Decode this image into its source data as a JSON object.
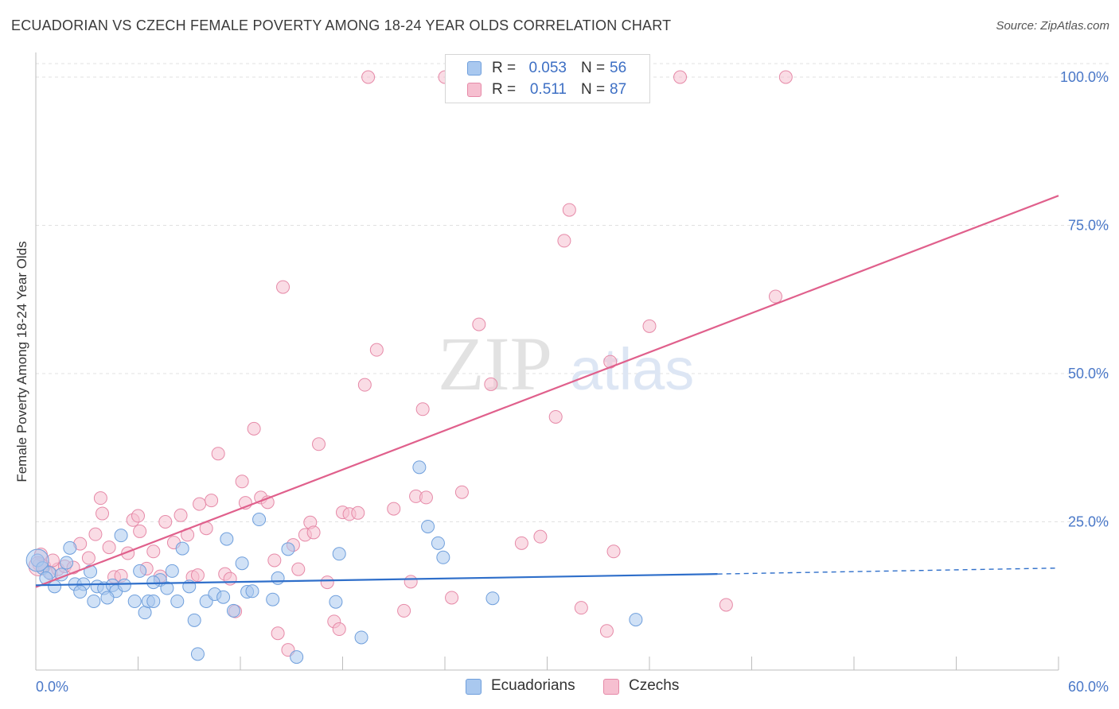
{
  "header": {
    "title": "ECUADORIAN VS CZECH FEMALE POVERTY AMONG 18-24 YEAR OLDS CORRELATION CHART",
    "source": "Source: ZipAtlas.com"
  },
  "watermark": {
    "zip": "ZIP",
    "atlas": "atlas"
  },
  "legend_top": {
    "rows": [
      {
        "r_label": "R =",
        "r_value": "0.053",
        "n_label": "N =",
        "n_value": "56"
      },
      {
        "r_label": "R =",
        "r_value": "0.511",
        "n_label": "N =",
        "n_value": "87"
      }
    ]
  },
  "legend_bottom": {
    "items": [
      {
        "label": "Ecuadorians"
      },
      {
        "label": "Czechs"
      }
    ]
  },
  "colors": {
    "ecuadorian_fill": "#a9c8ef",
    "ecuadorian_stroke": "#6f9fdc",
    "ecuadorian_line": "#2f6fca",
    "czech_fill": "#f6bfd0",
    "czech_stroke": "#e68aa8",
    "czech_line": "#e0608c",
    "grid": "#e1e1e1",
    "tick_text": "#4a78c8"
  },
  "chart_data": {
    "type": "scatter",
    "title": "ECUADORIAN VS CZECH FEMALE POVERTY AMONG 18-24 YEAR OLDS CORRELATION CHART",
    "ylabel": "Female Poverty Among 18-24 Year Olds",
    "xlabel": "",
    "xlim": [
      0,
      60
    ],
    "ylim": [
      0,
      105
    ],
    "x_tick_labels": [
      "0.0%",
      "60.0%"
    ],
    "y_ticks": [
      25,
      50,
      75,
      100
    ],
    "y_tick_labels": [
      "25.0%",
      "50.0%",
      "75.0%",
      "100.0%"
    ],
    "grid": true,
    "legend_position": "bottom",
    "series": [
      {
        "name": "Ecuadorians",
        "r": 0.053,
        "n": 56,
        "trend": {
          "x0": 0,
          "y0": 14.3,
          "x1": 40,
          "y1": 16.2,
          "dashed_to_x": 60,
          "dashed_to_y": 17.2
        },
        "points": [
          [
            0.1,
            18.5
          ],
          [
            0.4,
            17.2
          ],
          [
            0.8,
            16.4
          ],
          [
            1.1,
            14.1
          ],
          [
            1.5,
            16.1
          ],
          [
            1.8,
            18.1
          ],
          [
            2.0,
            20.6
          ],
          [
            2.3,
            14.5
          ],
          [
            2.8,
            14.5
          ],
          [
            3.2,
            16.6
          ],
          [
            3.4,
            11.6
          ],
          [
            3.6,
            14.1
          ],
          [
            4.0,
            13.8
          ],
          [
            4.5,
            14.3
          ],
          [
            4.7,
            13.3
          ],
          [
            5.0,
            22.7
          ],
          [
            5.2,
            14.3
          ],
          [
            5.8,
            11.6
          ],
          [
            6.1,
            16.7
          ],
          [
            6.4,
            9.7
          ],
          [
            6.6,
            11.6
          ],
          [
            6.9,
            11.6
          ],
          [
            7.3,
            15.2
          ],
          [
            7.7,
            13.8
          ],
          [
            8.0,
            16.7
          ],
          [
            8.3,
            11.6
          ],
          [
            8.6,
            20.5
          ],
          [
            9.0,
            14.1
          ],
          [
            9.3,
            8.4
          ],
          [
            9.5,
            2.7
          ],
          [
            10.0,
            11.6
          ],
          [
            10.5,
            12.8
          ],
          [
            11.0,
            12.3
          ],
          [
            11.2,
            22.1
          ],
          [
            12.1,
            18.0
          ],
          [
            12.4,
            13.2
          ],
          [
            13.1,
            25.4
          ],
          [
            13.9,
            11.9
          ],
          [
            14.2,
            15.5
          ],
          [
            14.8,
            20.4
          ],
          [
            15.3,
            2.2
          ],
          [
            17.6,
            11.5
          ],
          [
            17.8,
            19.6
          ],
          [
            19.1,
            5.5
          ],
          [
            22.5,
            34.2
          ],
          [
            23.0,
            24.2
          ],
          [
            23.6,
            21.4
          ],
          [
            23.9,
            19.0
          ],
          [
            26.8,
            12.1
          ],
          [
            35.2,
            8.5
          ],
          [
            0.6,
            15.5
          ],
          [
            2.6,
            13.2
          ],
          [
            4.2,
            12.2
          ],
          [
            6.9,
            14.8
          ],
          [
            12.7,
            13.3
          ],
          [
            11.6,
            10.0
          ]
        ]
      },
      {
        "name": "Czechs",
        "r": 0.511,
        "n": 87,
        "trend": {
          "x0": 0,
          "y0": 14.0,
          "x1": 60,
          "y1": 80.0
        },
        "points": [
          [
            0.2,
            17.8
          ],
          [
            0.5,
            17.5
          ],
          [
            0.9,
            16.2
          ],
          [
            1.3,
            17.0
          ],
          [
            1.7,
            17.5
          ],
          [
            2.2,
            17.3
          ],
          [
            2.6,
            21.3
          ],
          [
            3.1,
            18.9
          ],
          [
            3.5,
            22.9
          ],
          [
            3.9,
            26.4
          ],
          [
            4.3,
            20.7
          ],
          [
            4.6,
            15.7
          ],
          [
            5.0,
            15.9
          ],
          [
            5.4,
            19.7
          ],
          [
            5.7,
            25.3
          ],
          [
            6.1,
            23.4
          ],
          [
            6.5,
            17.1
          ],
          [
            6.9,
            20.0
          ],
          [
            7.3,
            15.8
          ],
          [
            7.6,
            25.0
          ],
          [
            8.1,
            21.5
          ],
          [
            8.5,
            26.1
          ],
          [
            8.9,
            22.8
          ],
          [
            9.2,
            15.7
          ],
          [
            9.6,
            28.0
          ],
          [
            10.0,
            23.9
          ],
          [
            10.3,
            28.6
          ],
          [
            10.7,
            36.5
          ],
          [
            11.1,
            16.2
          ],
          [
            11.4,
            15.4
          ],
          [
            11.7,
            9.9
          ],
          [
            12.1,
            31.8
          ],
          [
            12.3,
            28.2
          ],
          [
            12.8,
            40.7
          ],
          [
            13.2,
            29.1
          ],
          [
            13.6,
            28.3
          ],
          [
            14.2,
            6.2
          ],
          [
            14.5,
            64.6
          ],
          [
            14.8,
            3.4
          ],
          [
            15.1,
            21.1
          ],
          [
            15.4,
            17.0
          ],
          [
            15.8,
            22.8
          ],
          [
            16.1,
            24.9
          ],
          [
            16.3,
            23.2
          ],
          [
            16.6,
            38.1
          ],
          [
            17.1,
            14.8
          ],
          [
            17.5,
            8.2
          ],
          [
            17.8,
            6.9
          ],
          [
            18.0,
            26.6
          ],
          [
            18.4,
            26.3
          ],
          [
            18.9,
            26.5
          ],
          [
            19.3,
            48.1
          ],
          [
            19.5,
            100.0
          ],
          [
            20.0,
            54.0
          ],
          [
            21.0,
            27.2
          ],
          [
            21.6,
            10.0
          ],
          [
            22.0,
            14.9
          ],
          [
            22.3,
            29.3
          ],
          [
            22.7,
            44.0
          ],
          [
            22.9,
            29.1
          ],
          [
            24.0,
            100.0
          ],
          [
            24.4,
            12.2
          ],
          [
            25.4,
            100.0
          ],
          [
            26.0,
            58.3
          ],
          [
            26.7,
            48.2
          ],
          [
            28.5,
            21.4
          ],
          [
            28.8,
            100.0
          ],
          [
            29.6,
            22.5
          ],
          [
            30.5,
            42.7
          ],
          [
            31.0,
            72.4
          ],
          [
            31.3,
            77.6
          ],
          [
            32.0,
            10.5
          ],
          [
            33.5,
            6.6
          ],
          [
            33.7,
            52.0
          ],
          [
            33.9,
            20.0
          ],
          [
            36.0,
            58.0
          ],
          [
            37.8,
            100.0
          ],
          [
            40.5,
            11.0
          ],
          [
            43.4,
            63.0
          ],
          [
            44.0,
            100.0
          ],
          [
            0.3,
            19.5
          ],
          [
            1.0,
            18.5
          ],
          [
            3.8,
            29.0
          ],
          [
            6.0,
            26.0
          ],
          [
            9.5,
            16.0
          ],
          [
            14.0,
            18.5
          ],
          [
            25.0,
            30.0
          ]
        ]
      }
    ]
  }
}
